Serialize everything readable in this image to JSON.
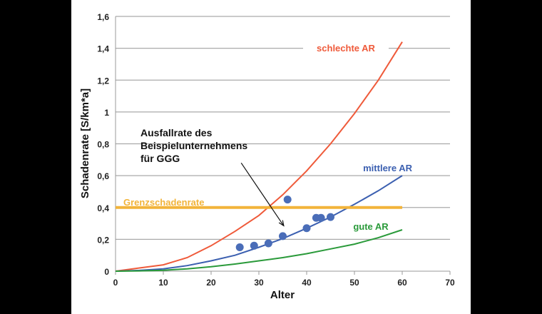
{
  "chart_data": {
    "type": "line",
    "xlabel": "Alter",
    "ylabel": "Schadenrate [S/km*a]",
    "xlim": [
      0,
      70
    ],
    "ylim": [
      0,
      1.6
    ],
    "xticks": [
      0,
      10,
      20,
      30,
      40,
      50,
      60,
      70
    ],
    "xtick_labels": [
      "0",
      "10",
      "20",
      "30",
      "40",
      "50",
      "60",
      "70"
    ],
    "yticks": [
      0,
      0.2,
      0.4,
      0.6,
      0.8,
      1,
      1.2,
      1.4,
      1.6
    ],
    "ytick_labels": [
      "0",
      "0,2",
      "0,4",
      "0,6",
      "0,8",
      "1",
      "1,2",
      "1,4",
      "1,6"
    ],
    "grid": "horizontal",
    "series": [
      {
        "name": "schlechte AR",
        "color": "#ef5a3a",
        "x": [
          0,
          5,
          10,
          15,
          20,
          25,
          30,
          35,
          40,
          45,
          50,
          55,
          60
        ],
        "y": [
          0,
          0.02,
          0.04,
          0.085,
          0.16,
          0.25,
          0.35,
          0.48,
          0.63,
          0.8,
          0.99,
          1.2,
          1.44
        ]
      },
      {
        "name": "mittlere AR",
        "color": "#3b5fb0",
        "x": [
          0,
          5,
          10,
          15,
          20,
          25,
          30,
          35,
          40,
          45,
          50,
          55,
          60
        ],
        "y": [
          0,
          0.005,
          0.015,
          0.035,
          0.065,
          0.1,
          0.15,
          0.205,
          0.27,
          0.34,
          0.42,
          0.505,
          0.6
        ]
      },
      {
        "name": "gute AR",
        "color": "#2a9a3a",
        "x": [
          0,
          5,
          10,
          15,
          20,
          25,
          30,
          35,
          40,
          45,
          50,
          55,
          60
        ],
        "y": [
          0,
          0.002,
          0.006,
          0.015,
          0.028,
          0.045,
          0.065,
          0.085,
          0.11,
          0.14,
          0.17,
          0.21,
          0.26
        ]
      },
      {
        "name": "Grenzschadenrate",
        "color": "#f2b43a",
        "x": [
          0,
          60
        ],
        "y": [
          0.4,
          0.4
        ]
      }
    ],
    "points": {
      "color": "#4a6db8",
      "x": [
        26,
        29,
        32,
        35,
        36,
        40,
        42,
        43,
        45
      ],
      "y": [
        0.15,
        0.16,
        0.175,
        0.22,
        0.45,
        0.27,
        0.335,
        0.335,
        0.34
      ]
    },
    "annotation": {
      "lines": [
        "Ausfallrate des",
        "Beispielunternehmens",
        "für GGG"
      ],
      "arrow_from": [
        26.3,
        0.68
      ],
      "arrow_to": [
        35.2,
        0.285
      ]
    }
  }
}
